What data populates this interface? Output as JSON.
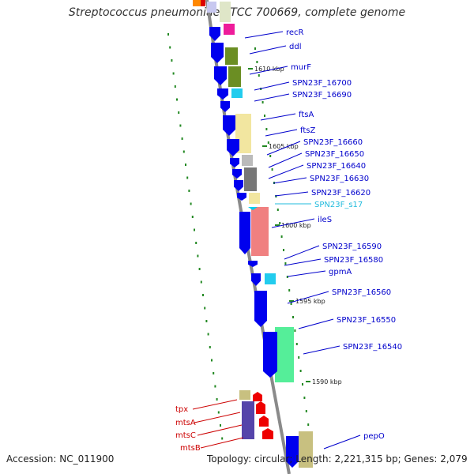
{
  "title": "Streptococcus pneumoniae ATCC 700669, complete genome",
  "accession": "Accession: NC_011900",
  "summary": "Topology: circular; Length: 2,221,315 bp; Genes: 2,079",
  "colors": {
    "cds": "#0000ee",
    "rna": "#00ccee",
    "backbone": "#888888",
    "label_blue": "#0000cc",
    "label_cyan": "#22bbdd",
    "label_red": "#cc0000",
    "dots": "#228822"
  },
  "scale_labels": [
    "1610 kbp",
    "1605 kbp",
    "1600 kbp",
    "1595 kbp",
    "1590 kbp"
  ],
  "right_genes": [
    "recR",
    "ddl",
    "murF",
    "SPN23F_16700",
    "SPN23F_16690",
    "ftsA",
    "ftsZ",
    "SPN23F_16660",
    "SPN23F_16650",
    "SPN23F_16640",
    "SPN23F_16630",
    "SPN23F_16620",
    "SPN23F_s17",
    "ileS",
    "SPN23F_16590",
    "SPN23F_16580",
    "gpmA",
    "SPN23F_16560",
    "SPN23F_16550",
    "SPN23F_16540",
    "pepO"
  ],
  "left_genes": [
    "tpx",
    "mtsA",
    "mtsC",
    "mtsB"
  ]
}
